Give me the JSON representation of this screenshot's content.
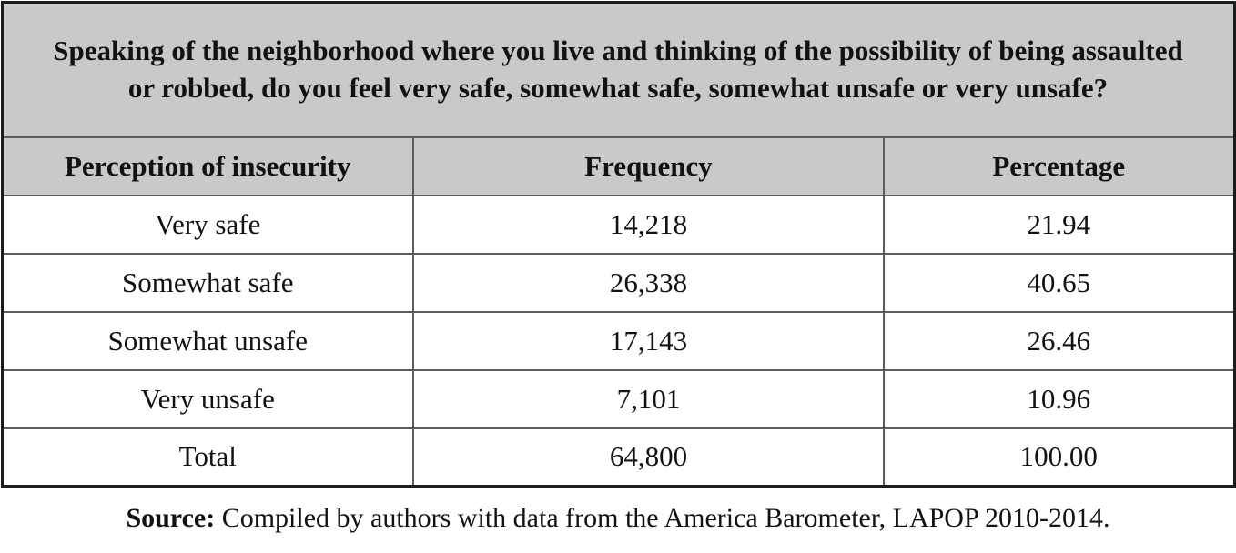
{
  "table": {
    "title": "Speaking of the neighborhood where you live and thinking of the possibility of being assaulted or robbed, do you feel very safe, somewhat safe, somewhat unsafe or very unsafe?",
    "columns": [
      "Perception of insecurity",
      "Frequency",
      "Percentage"
    ],
    "rows": [
      {
        "label": "Very safe",
        "frequency": "14,218",
        "percentage": "21.94"
      },
      {
        "label": "Somewhat safe",
        "frequency": "26,338",
        "percentage": "40.65"
      },
      {
        "label": "Somewhat unsafe",
        "frequency": "17,143",
        "percentage": "26.46"
      },
      {
        "label": "Very unsafe",
        "frequency": "7,101",
        "percentage": "10.96"
      },
      {
        "label": "Total",
        "frequency": "64,800",
        "percentage": "100.00"
      }
    ]
  },
  "source": {
    "label": "Source:",
    "text": "Compiled by authors with data from the America Barometer, LAPOP 2010-2014."
  },
  "colors": {
    "header-bg": "#c9c9c9",
    "outer-border": "#1c1c1c",
    "inner-border": "#5c5c5c",
    "text": "#121212",
    "page-bg": "#ffffff"
  },
  "chart_data": {
    "type": "table",
    "title": "Speaking of the neighborhood where you live and thinking of the possibility of being assaulted or robbed, do you feel very safe, somewhat safe, somewhat unsafe or very unsafe?",
    "columns": [
      "Perception of insecurity",
      "Frequency",
      "Percentage"
    ],
    "rows": [
      [
        "Very safe",
        14218,
        21.94
      ],
      [
        "Somewhat safe",
        26338,
        40.65
      ],
      [
        "Somewhat unsafe",
        17143,
        26.46
      ],
      [
        "Very unsafe",
        7101,
        10.96
      ],
      [
        "Total",
        64800,
        100.0
      ]
    ],
    "source": "Source: Compiled by authors with data from the America Barometer, LAPOP 2010-2014."
  }
}
